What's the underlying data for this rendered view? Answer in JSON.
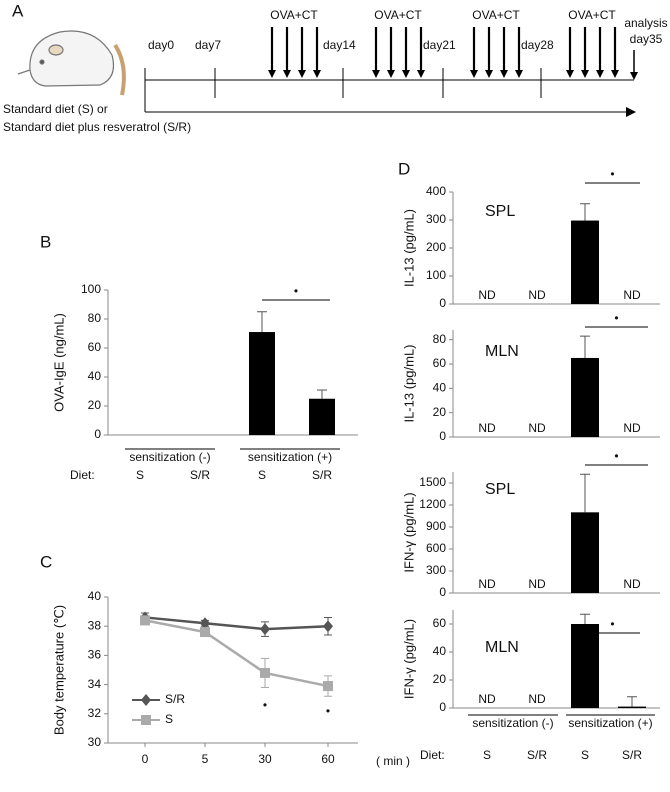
{
  "timeline": {
    "panel_label": "A",
    "days": [
      "day0",
      "day7",
      "day14",
      "day21",
      "day28"
    ],
    "end_labels": [
      "analysis",
      "day35"
    ],
    "immunizations": [
      "OVA+CT",
      "OVA+CT",
      "OVA+CT",
      "OVA+CT"
    ],
    "diet": [
      "Standard diet (S) or",
      "Standard diet plus resveratrol (S/R)"
    ]
  },
  "chart_data": [
    {
      "type": "bar",
      "panel_label": "B",
      "y_label": "OVA-IgE (ng/mL)",
      "ylim": [
        0,
        100
      ],
      "yticks": [
        0,
        20,
        40,
        60,
        80,
        100
      ],
      "categories": [
        "S",
        "S/R",
        "S",
        "S/R"
      ],
      "values": [
        0,
        0,
        71,
        25
      ],
      "errors": [
        null,
        null,
        14,
        6
      ],
      "color": "#000000",
      "groups": [
        "sensitization (-)",
        "sensitization (+)"
      ],
      "diet_label": "Diet:",
      "significance": "•"
    },
    {
      "type": "line",
      "panel_label": "C",
      "y_label": "Body temperature (℃)",
      "x_label": "( min )",
      "ylim": [
        30,
        40
      ],
      "yticks": [
        30,
        32,
        34,
        36,
        38,
        40
      ],
      "categories": [
        0,
        5,
        30,
        60
      ],
      "series": [
        {
          "name": "S/R",
          "color": "#555555",
          "marker": "diamond",
          "values": [
            38.6,
            38.2,
            37.8,
            38.0
          ],
          "errors": [
            0.3,
            0.2,
            0.5,
            0.6
          ]
        },
        {
          "name": "S",
          "color": "#aaaaaa",
          "marker": "square",
          "values": [
            38.4,
            37.6,
            34.8,
            33.9
          ],
          "errors": [
            0.3,
            0.2,
            1.0,
            0.7
          ]
        }
      ],
      "significance": [
        "•",
        "•"
      ]
    },
    {
      "type": "bar",
      "panel_label": "D",
      "y_label": "IL-13 (pg/mL)",
      "tissue": "SPL",
      "ylim": [
        0,
        400
      ],
      "yticks": [
        0,
        100,
        200,
        300,
        400
      ],
      "categories": [
        null,
        null,
        null,
        null
      ],
      "values": [
        null,
        null,
        298,
        null
      ],
      "value_labels": [
        "ND",
        "ND",
        null,
        "ND"
      ],
      "errors": [
        null,
        null,
        60,
        null
      ],
      "color": "#000000",
      "significance": "•"
    },
    {
      "type": "bar",
      "y_label": "IL-13 (pg/mL)",
      "tissue": "MLN",
      "ylim": [
        0,
        88
      ],
      "yticks": [
        0,
        20,
        40,
        60,
        80
      ],
      "categories": [
        null,
        null,
        null,
        null
      ],
      "values": [
        null,
        null,
        65,
        null
      ],
      "value_labels": [
        "ND",
        "ND",
        null,
        "ND"
      ],
      "errors": [
        null,
        null,
        18,
        null
      ],
      "color": "#000000",
      "significance": "•"
    },
    {
      "type": "bar",
      "y_label": "IFN-γ (pg/mL)",
      "tissue": "SPL",
      "ylim": [
        0,
        1650
      ],
      "yticks": [
        0,
        300,
        600,
        900,
        1200,
        1500
      ],
      "categories": [
        null,
        null,
        null,
        null
      ],
      "values": [
        null,
        null,
        1100,
        null
      ],
      "value_labels": [
        "ND",
        "ND",
        null,
        "ND"
      ],
      "errors": [
        null,
        null,
        520,
        null
      ],
      "color": "#000000",
      "significance": "•"
    },
    {
      "type": "bar",
      "y_label": "IFN-γ (pg/mL)",
      "tissue": "MLN",
      "ylim": [
        0,
        70
      ],
      "yticks": [
        0,
        20,
        40,
        60
      ],
      "categories": [
        "S",
        "S/R",
        "S",
        "S/R"
      ],
      "values": [
        null,
        null,
        60,
        1
      ],
      "value_labels": [
        "ND",
        "ND",
        null,
        null
      ],
      "errors": [
        null,
        null,
        7,
        7
      ],
      "color": "#000000",
      "groups": [
        "sensitization (-)",
        "sensitization (+)"
      ],
      "diet_label": "Diet:",
      "significance": "•"
    }
  ]
}
